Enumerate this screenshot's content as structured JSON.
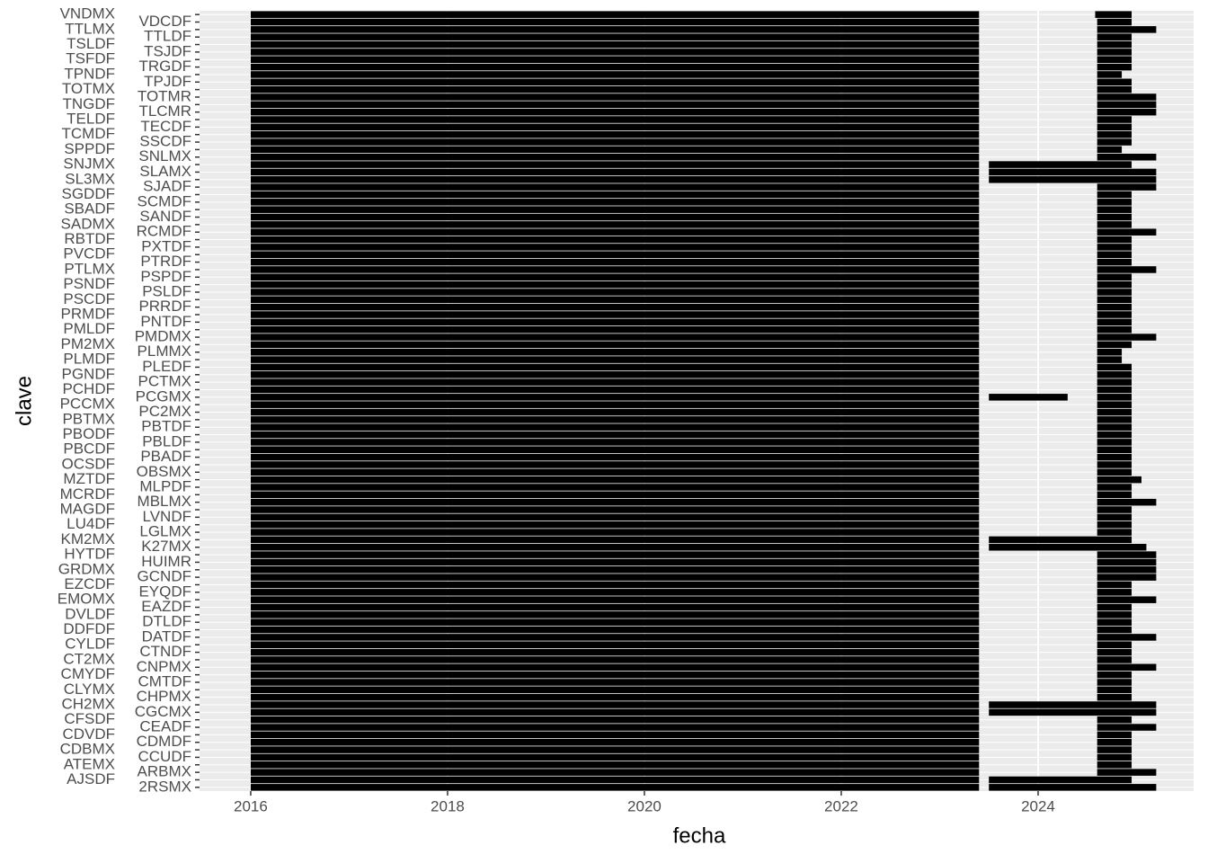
{
  "chart_data": {
    "type": "timeline",
    "x_label": "fecha",
    "y_label": "clave",
    "xlim": [
      2015.48,
      2025.58
    ],
    "xticks": [
      2016,
      2018,
      2020,
      2022,
      2024
    ],
    "grid": true,
    "color": "#000000",
    "categories": [
      "2RSMX",
      "AJSDF",
      "ARBMX",
      "ATEMX",
      "CCUDF",
      "CDBMX",
      "CDMDF",
      "CDVDF",
      "CEADF",
      "CFSDF",
      "CGCMX",
      "CH2MX",
      "CHPMX",
      "CLYMX",
      "CMTDF",
      "CMYDF",
      "CNPMX",
      "CT2MX",
      "CTNDF",
      "CYLDF",
      "DATDF",
      "DDFDF",
      "DTLDF",
      "DVLDF",
      "EAZDF",
      "EMOMX",
      "EYQDF",
      "EZCDF",
      "GCNDF",
      "GRDMX",
      "HUIMR",
      "HYTDF",
      "K27MX",
      "KM2MX",
      "LGLMX",
      "LU4DF",
      "LVNDF",
      "MAGDF",
      "MBLMX",
      "MCRDF",
      "MLPDF",
      "MZTDF",
      "OBSMX",
      "OCSDF",
      "PBADF",
      "PBCDF",
      "PBLDF",
      "PBODF",
      "PBTDF",
      "PBTMX",
      "PC2MX",
      "PCCMX",
      "PCGMX",
      "PCHDF",
      "PCTMX",
      "PGNDF",
      "PLEDF",
      "PLMDF",
      "PLMMX",
      "PM2MX",
      "PMDMX",
      "PMLDF",
      "PNTDF",
      "PRMDF",
      "PRRDF",
      "PSCDF",
      "PSLDF",
      "PSNDF",
      "PSPDF",
      "PTLMX",
      "PTRDF",
      "PVCDF",
      "PXTDF",
      "RBTDF",
      "RCMDF",
      "SADMX",
      "SANDF",
      "SBADF",
      "SCMDF",
      "SGDDF",
      "SJADF",
      "SL3MX",
      "SLAMX",
      "SNJMX",
      "SNLMX",
      "SPPDF",
      "SSCDF",
      "TCMDF",
      "TECDF",
      "TELDF",
      "TLCMR",
      "TNGDF",
      "TOTMR",
      "TOTMX",
      "TPJDF",
      "TPNDF",
      "TRGDF",
      "TSFDF",
      "TSJDF",
      "TSLDF",
      "TTLDF",
      "TTLMX",
      "VDCDF",
      "VNDMX"
    ],
    "segments": [
      [
        [
          2016,
          2023.4
        ],
        [
          2023.5,
          2025.2
        ]
      ],
      [
        [
          2016,
          2023.4
        ],
        [
          2023.5,
          2024.95
        ]
      ],
      [
        [
          2016,
          2023.4
        ],
        [
          2024.6,
          2025.2
        ]
      ],
      [
        [
          2016,
          2023.4
        ],
        [
          2024.6,
          2024.95
        ]
      ],
      [
        [
          2016,
          2023.4
        ],
        [
          2024.6,
          2024.95
        ]
      ],
      [
        [
          2016,
          2023.4
        ],
        [
          2024.6,
          2024.95
        ]
      ],
      [
        [
          2016,
          2023.4
        ],
        [
          2024.6,
          2024.95
        ]
      ],
      [
        [
          2016,
          2023.4
        ],
        [
          2024.6,
          2024.95
        ]
      ],
      [
        [
          2016,
          2023.4
        ],
        [
          2024.6,
          2025.2
        ]
      ],
      [
        [
          2016,
          2023.4
        ],
        [
          2024.6,
          2024.95
        ]
      ],
      [
        [
          2016,
          2023.4
        ],
        [
          2023.5,
          2025.2
        ]
      ],
      [
        [
          2016,
          2023.4
        ],
        [
          2023.5,
          2025.2
        ]
      ],
      [
        [
          2016,
          2023.4
        ],
        [
          2024.6,
          2024.95
        ]
      ],
      [
        [
          2016,
          2023.4
        ],
        [
          2024.6,
          2024.95
        ]
      ],
      [
        [
          2016,
          2023.4
        ],
        [
          2024.6,
          2024.95
        ]
      ],
      [
        [
          2016,
          2023.4
        ],
        [
          2024.6,
          2024.95
        ]
      ],
      [
        [
          2016,
          2023.4
        ],
        [
          2024.6,
          2025.2
        ]
      ],
      [
        [
          2016,
          2023.4
        ],
        [
          2024.6,
          2024.95
        ]
      ],
      [
        [
          2016,
          2023.4
        ],
        [
          2024.6,
          2024.95
        ]
      ],
      [
        [
          2016,
          2023.4
        ],
        [
          2024.6,
          2024.95
        ]
      ],
      [
        [
          2016,
          2023.4
        ],
        [
          2024.6,
          2025.2
        ]
      ],
      [
        [
          2016,
          2023.4
        ],
        [
          2024.6,
          2024.95
        ]
      ],
      [
        [
          2016,
          2023.4
        ],
        [
          2024.6,
          2024.95
        ]
      ],
      [
        [
          2016,
          2023.4
        ],
        [
          2024.6,
          2024.95
        ]
      ],
      [
        [
          2016,
          2023.4
        ],
        [
          2024.6,
          2024.95
        ]
      ],
      [
        [
          2016,
          2023.4
        ],
        [
          2024.6,
          2025.2
        ]
      ],
      [
        [
          2016,
          2023.4
        ],
        [
          2024.6,
          2024.95
        ]
      ],
      [
        [
          2016,
          2023.4
        ],
        [
          2024.6,
          2024.95
        ]
      ],
      [
        [
          2016,
          2023.4
        ],
        [
          2024.6,
          2025.2
        ]
      ],
      [
        [
          2016,
          2023.4
        ],
        [
          2024.6,
          2025.2
        ]
      ],
      [
        [
          2016,
          2023.4
        ],
        [
          2024.6,
          2025.2
        ]
      ],
      [
        [
          2016,
          2023.4
        ],
        [
          2024.6,
          2025.2
        ]
      ],
      [
        [
          2016,
          2023.4
        ],
        [
          2023.5,
          2025.1
        ]
      ],
      [
        [
          2016,
          2023.4
        ],
        [
          2023.5,
          2024.95
        ]
      ],
      [
        [
          2016,
          2023.4
        ],
        [
          2024.6,
          2024.95
        ]
      ],
      [
        [
          2016,
          2023.4
        ],
        [
          2024.6,
          2024.95
        ]
      ],
      [
        [
          2016,
          2023.4
        ],
        [
          2024.6,
          2024.95
        ]
      ],
      [
        [
          2016,
          2023.4
        ],
        [
          2024.6,
          2024.95
        ]
      ],
      [
        [
          2016,
          2023.4
        ],
        [
          2024.6,
          2025.2
        ]
      ],
      [
        [
          2016,
          2023.4
        ],
        [
          2024.6,
          2024.95
        ]
      ],
      [
        [
          2016,
          2023.4
        ],
        [
          2024.6,
          2024.95
        ]
      ],
      [
        [
          2016,
          2023.4
        ],
        [
          2024.6,
          2025.05
        ]
      ],
      [
        [
          2016,
          2023.4
        ],
        [
          2024.6,
          2024.95
        ]
      ],
      [
        [
          2016,
          2023.4
        ],
        [
          2024.6,
          2024.95
        ]
      ],
      [
        [
          2016,
          2023.4
        ],
        [
          2024.6,
          2024.95
        ]
      ],
      [
        [
          2016,
          2023.4
        ],
        [
          2024.6,
          2024.95
        ]
      ],
      [
        [
          2016,
          2023.4
        ],
        [
          2024.6,
          2024.95
        ]
      ],
      [
        [
          2016,
          2023.4
        ],
        [
          2024.6,
          2024.95
        ]
      ],
      [
        [
          2016,
          2023.4
        ],
        [
          2024.6,
          2024.95
        ]
      ],
      [
        [
          2016,
          2023.4
        ],
        [
          2024.6,
          2024.95
        ]
      ],
      [
        [
          2016,
          2023.4
        ],
        [
          2024.6,
          2024.95
        ]
      ],
      [
        [
          2016,
          2023.4
        ],
        [
          2024.6,
          2024.95
        ]
      ],
      [
        [
          2016,
          2023.4
        ],
        [
          2023.5,
          2024.3
        ],
        [
          2024.6,
          2024.95
        ]
      ],
      [
        [
          2016,
          2023.4
        ],
        [
          2024.6,
          2024.95
        ]
      ],
      [
        [
          2016,
          2023.4
        ],
        [
          2024.6,
          2024.95
        ]
      ],
      [
        [
          2016,
          2023.4
        ],
        [
          2024.6,
          2024.95
        ]
      ],
      [
        [
          2016,
          2023.4
        ],
        [
          2024.6,
          2024.95
        ]
      ],
      [
        [
          2016,
          2023.4
        ],
        [
          2024.6,
          2024.85
        ]
      ],
      [
        [
          2016,
          2023.4
        ],
        [
          2024.6,
          2024.85
        ]
      ],
      [
        [
          2016,
          2023.4
        ],
        [
          2024.6,
          2024.95
        ]
      ],
      [
        [
          2016,
          2023.4
        ],
        [
          2024.6,
          2025.2
        ]
      ],
      [
        [
          2016,
          2023.4
        ],
        [
          2024.6,
          2024.95
        ]
      ],
      [
        [
          2016,
          2023.4
        ],
        [
          2024.6,
          2024.95
        ]
      ],
      [
        [
          2016,
          2023.4
        ],
        [
          2024.6,
          2024.95
        ]
      ],
      [
        [
          2016,
          2023.4
        ],
        [
          2024.6,
          2024.95
        ]
      ],
      [
        [
          2016,
          2023.4
        ],
        [
          2024.6,
          2024.95
        ]
      ],
      [
        [
          2016,
          2023.4
        ],
        [
          2024.6,
          2024.95
        ]
      ],
      [
        [
          2016,
          2023.4
        ],
        [
          2024.6,
          2024.95
        ]
      ],
      [
        [
          2016,
          2023.4
        ],
        [
          2024.6,
          2024.95
        ]
      ],
      [
        [
          2016,
          2023.4
        ],
        [
          2024.6,
          2025.2
        ]
      ],
      [
        [
          2016,
          2023.4
        ],
        [
          2024.6,
          2024.95
        ]
      ],
      [
        [
          2016,
          2023.4
        ],
        [
          2024.6,
          2024.95
        ]
      ],
      [
        [
          2016,
          2023.4
        ],
        [
          2024.6,
          2024.95
        ]
      ],
      [
        [
          2016,
          2023.4
        ],
        [
          2024.6,
          2024.95
        ]
      ],
      [
        [
          2016,
          2023.4
        ],
        [
          2024.6,
          2025.2
        ]
      ],
      [
        [
          2016,
          2023.4
        ],
        [
          2024.6,
          2024.95
        ]
      ],
      [
        [
          2016,
          2023.4
        ],
        [
          2024.6,
          2024.95
        ]
      ],
      [
        [
          2016,
          2023.4
        ],
        [
          2024.6,
          2024.95
        ]
      ],
      [
        [
          2016,
          2023.4
        ],
        [
          2024.6,
          2024.95
        ]
      ],
      [
        [
          2016,
          2023.4
        ],
        [
          2024.6,
          2024.95
        ]
      ],
      [
        [
          2016,
          2023.4
        ],
        [
          2024.6,
          2025.2
        ]
      ],
      [
        [
          2016,
          2023.4
        ],
        [
          2023.5,
          2025.2
        ]
      ],
      [
        [
          2016,
          2023.4
        ],
        [
          2023.5,
          2025.2
        ]
      ],
      [
        [
          2016,
          2023.4
        ],
        [
          2023.5,
          2024.95
        ]
      ],
      [
        [
          2016,
          2023.4
        ],
        [
          2024.6,
          2025.2
        ]
      ],
      [
        [
          2016,
          2023.4
        ],
        [
          2024.6,
          2024.85
        ]
      ],
      [
        [
          2016,
          2023.4
        ],
        [
          2024.6,
          2024.95
        ]
      ],
      [
        [
          2016,
          2023.4
        ],
        [
          2024.6,
          2024.95
        ]
      ],
      [
        [
          2016,
          2023.4
        ],
        [
          2024.6,
          2024.95
        ]
      ],
      [
        [
          2016,
          2023.4
        ],
        [
          2024.6,
          2024.95
        ]
      ],
      [
        [
          2016,
          2023.4
        ],
        [
          2024.6,
          2025.2
        ]
      ],
      [
        [
          2016,
          2023.4
        ],
        [
          2024.6,
          2025.2
        ]
      ],
      [
        [
          2016,
          2023.4
        ],
        [
          2024.6,
          2025.2
        ]
      ],
      [
        [
          2016,
          2023.4
        ],
        [
          2024.6,
          2024.95
        ]
      ],
      [
        [
          2016,
          2023.4
        ],
        [
          2024.6,
          2024.95
        ]
      ],
      [
        [
          2016,
          2023.4
        ],
        [
          2024.6,
          2024.85
        ]
      ],
      [
        [
          2016,
          2023.4
        ],
        [
          2024.6,
          2024.95
        ]
      ],
      [
        [
          2016,
          2023.4
        ],
        [
          2024.6,
          2024.95
        ]
      ],
      [
        [
          2016,
          2023.4
        ],
        [
          2024.6,
          2024.95
        ]
      ],
      [
        [
          2016,
          2023.4
        ],
        [
          2024.6,
          2024.95
        ]
      ],
      [
        [
          2016,
          2023.4
        ],
        [
          2024.6,
          2024.95
        ]
      ],
      [
        [
          2016,
          2023.4
        ],
        [
          2024.6,
          2025.2
        ]
      ],
      [
        [
          2016,
          2023.4
        ],
        [
          2024.6,
          2024.95
        ]
      ],
      [
        [
          2016,
          2023.4
        ],
        [
          2024.58,
          2024.95
        ]
      ]
    ]
  }
}
